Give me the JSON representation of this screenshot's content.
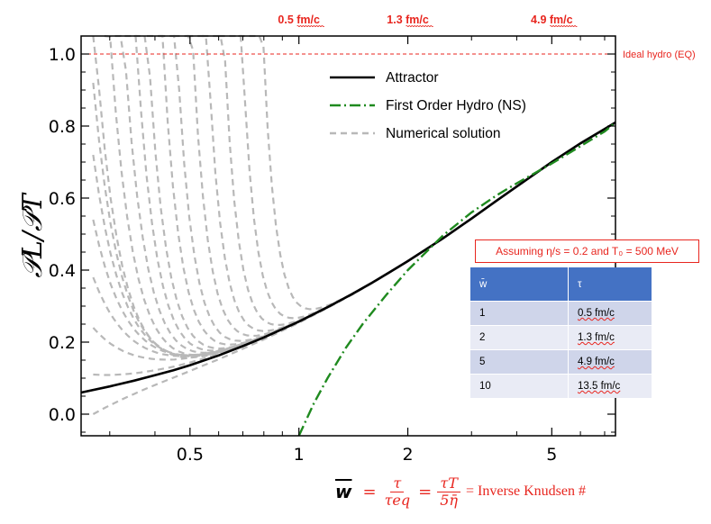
{
  "chart_data": {
    "type": "line",
    "xscale": "log",
    "xlim": [
      0.25,
      7.5
    ],
    "ylim": [
      -0.06,
      1.05
    ],
    "x_ticks": [
      0.5,
      1,
      2,
      5
    ],
    "x_tick_labels": [
      "0.5",
      "1",
      "2",
      "5"
    ],
    "y_ticks": [
      0.0,
      0.2,
      0.4,
      0.6,
      0.8,
      1.0
    ],
    "y_tick_labels": [
      "0.0",
      "0.2",
      "0.4",
      "0.6",
      "0.8",
      "1.0"
    ],
    "ylabel": "𝒫L/𝒫T",
    "top_ticks": [
      {
        "x": 1,
        "label": "0.5 fm/c"
      },
      {
        "x": 2,
        "label": "1.3 fm/c"
      },
      {
        "x": 5,
        "label": "4.9 fm/c"
      }
    ],
    "reference_line": {
      "y": 1.0,
      "label": "Ideal hydro (EQ)",
      "color": "#e8261f"
    },
    "legend": {
      "position": "top-center",
      "entries": [
        {
          "label": "Attractor",
          "color": "#000000",
          "style": "solid"
        },
        {
          "label": "First Order Hydro (NS)",
          "color": "#1f8a1f",
          "style": "dash-dot"
        },
        {
          "label": "Numerical solution",
          "color": "#b8b8b8",
          "style": "dashed"
        }
      ]
    },
    "series": [
      {
        "name": "Attractor",
        "color": "#000000",
        "x": [
          0.25,
          0.3,
          0.35,
          0.4,
          0.45,
          0.5,
          0.6,
          0.7,
          0.8,
          0.9,
          1.0,
          1.2,
          1.4,
          1.6,
          1.8,
          2.0,
          2.5,
          3.0,
          3.5,
          4.0,
          5.0,
          6.0,
          7.0,
          7.5
        ],
        "y": [
          0.06,
          0.077,
          0.093,
          0.108,
          0.122,
          0.136,
          0.163,
          0.189,
          0.213,
          0.236,
          0.257,
          0.297,
          0.333,
          0.366,
          0.397,
          0.425,
          0.488,
          0.543,
          0.591,
          0.632,
          0.7,
          0.752,
          0.792,
          0.81
        ]
      },
      {
        "name": "First Order Hydro (NS)",
        "color": "#1f8a1f",
        "x": [
          1.0,
          1.1,
          1.2,
          1.35,
          1.5,
          1.75,
          2.0,
          2.5,
          3.0,
          3.5,
          4.0,
          5.0,
          6.0,
          7.0,
          7.5
        ],
        "y": [
          -0.06,
          0.03,
          0.1,
          0.185,
          0.25,
          0.333,
          0.4,
          0.496,
          0.56,
          0.606,
          0.641,
          0.696,
          0.744,
          0.785,
          0.81
        ]
      }
    ],
    "numerical_solutions": {
      "color": "#b8b8b8",
      "style": "dashed",
      "count": 19
    },
    "inset_table": {
      "note": "Assuming η/s = 0.2 and T₀ = 500 MeV",
      "headers": [
        "w̄",
        "τ"
      ],
      "rows": [
        [
          "1",
          "0.5 fm/c"
        ],
        [
          "2",
          "1.3 fm/c"
        ],
        [
          "5",
          "4.9 fm/c"
        ],
        [
          "10",
          "13.5 fm/c"
        ]
      ]
    },
    "x_axis_formula": {
      "w": "w",
      "frac1_num": "τ",
      "frac1_den": "τeq",
      "frac2_num": "τT",
      "frac2_den": "5η̄",
      "tail": "= Inverse Knudsen #"
    }
  }
}
